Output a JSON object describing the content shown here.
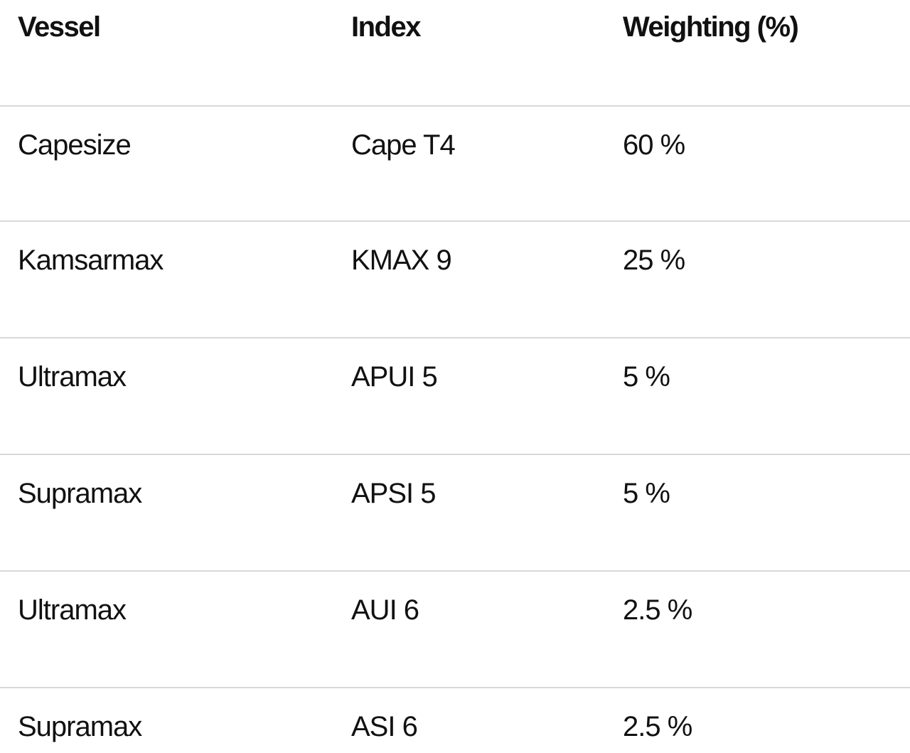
{
  "table": {
    "headers": {
      "vessel": "Vessel",
      "index": "Index",
      "weighting": "Weighting (%)"
    },
    "rows": [
      {
        "vessel": "Capesize",
        "index": "Cape T4",
        "weighting": "60 %"
      },
      {
        "vessel": "Kamsarmax",
        "index": "KMAX 9",
        "weighting": "25 %"
      },
      {
        "vessel": "Ultramax",
        "index": "APUI 5",
        "weighting": "5 %"
      },
      {
        "vessel": "Supramax",
        "index": "APSI 5",
        "weighting": "5 %"
      },
      {
        "vessel": "Ultramax",
        "index": "AUI 6",
        "weighting": "2.5 %"
      },
      {
        "vessel": "Supramax",
        "index": "ASI 6",
        "weighting": "2.5 %"
      }
    ]
  },
  "colors": {
    "text": "#111111",
    "divider": "#d8d8d8",
    "background": "#ffffff"
  }
}
